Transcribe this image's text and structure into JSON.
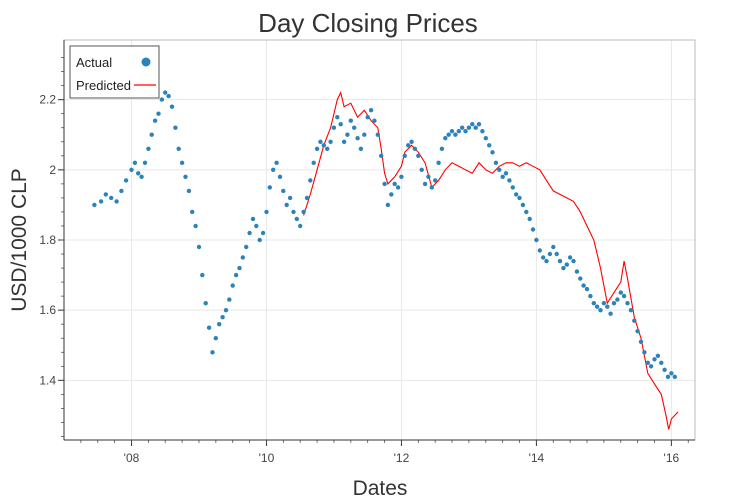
{
  "chart_data": {
    "type": "scatter",
    "title": "Day Closing Prices",
    "xlabel": "Dates",
    "ylabel": "USD/1000 CLP",
    "xlim": [
      2007.0,
      2016.35
    ],
    "ylim": [
      1.23,
      2.37
    ],
    "x_ticks": [
      {
        "value": 2008,
        "label": "'08"
      },
      {
        "value": 2010,
        "label": "'10"
      },
      {
        "value": 2012,
        "label": "'12"
      },
      {
        "value": 2014,
        "label": "'14"
      },
      {
        "value": 2016,
        "label": "'16"
      }
    ],
    "y_ticks": [
      {
        "value": 1.4,
        "label": "1.4"
      },
      {
        "value": 1.6,
        "label": "1.6"
      },
      {
        "value": 1.8,
        "label": "1.8"
      },
      {
        "value": 2.0,
        "label": "2"
      },
      {
        "value": 2.2,
        "label": "2.2"
      }
    ],
    "grid": true,
    "legend_position": "top-left",
    "series": [
      {
        "name": "Actual",
        "style": "points",
        "color": "#2b83ba",
        "points": [
          [
            2007.45,
            1.9
          ],
          [
            2007.55,
            1.91
          ],
          [
            2007.62,
            1.93
          ],
          [
            2007.7,
            1.92
          ],
          [
            2007.78,
            1.91
          ],
          [
            2007.85,
            1.94
          ],
          [
            2007.92,
            1.97
          ],
          [
            2008.0,
            2.0
          ],
          [
            2008.05,
            2.02
          ],
          [
            2008.1,
            1.99
          ],
          [
            2008.15,
            1.98
          ],
          [
            2008.2,
            2.02
          ],
          [
            2008.25,
            2.06
          ],
          [
            2008.3,
            2.1
          ],
          [
            2008.35,
            2.14
          ],
          [
            2008.4,
            2.16
          ],
          [
            2008.45,
            2.2
          ],
          [
            2008.5,
            2.22
          ],
          [
            2008.55,
            2.21
          ],
          [
            2008.6,
            2.18
          ],
          [
            2008.65,
            2.12
          ],
          [
            2008.7,
            2.06
          ],
          [
            2008.75,
            2.02
          ],
          [
            2008.8,
            1.98
          ],
          [
            2008.85,
            1.94
          ],
          [
            2008.9,
            1.88
          ],
          [
            2008.95,
            1.84
          ],
          [
            2009.0,
            1.78
          ],
          [
            2009.05,
            1.7
          ],
          [
            2009.1,
            1.62
          ],
          [
            2009.15,
            1.55
          ],
          [
            2009.2,
            1.48
          ],
          [
            2009.25,
            1.52
          ],
          [
            2009.3,
            1.56
          ],
          [
            2009.35,
            1.58
          ],
          [
            2009.4,
            1.6
          ],
          [
            2009.45,
            1.63
          ],
          [
            2009.5,
            1.67
          ],
          [
            2009.55,
            1.7
          ],
          [
            2009.6,
            1.72
          ],
          [
            2009.65,
            1.75
          ],
          [
            2009.7,
            1.78
          ],
          [
            2009.75,
            1.82
          ],
          [
            2009.8,
            1.86
          ],
          [
            2009.85,
            1.84
          ],
          [
            2009.9,
            1.8
          ],
          [
            2009.95,
            1.82
          ],
          [
            2010.0,
            1.88
          ],
          [
            2010.05,
            1.95
          ],
          [
            2010.1,
            2.0
          ],
          [
            2010.15,
            2.02
          ],
          [
            2010.2,
            1.98
          ],
          [
            2010.25,
            1.94
          ],
          [
            2010.3,
            1.9
          ],
          [
            2010.35,
            1.92
          ],
          [
            2010.4,
            1.88
          ],
          [
            2010.45,
            1.86
          ],
          [
            2010.5,
            1.84
          ],
          [
            2010.55,
            1.88
          ],
          [
            2010.6,
            1.92
          ],
          [
            2010.65,
            1.97
          ],
          [
            2010.7,
            2.02
          ],
          [
            2010.75,
            2.06
          ],
          [
            2010.8,
            2.08
          ],
          [
            2010.85,
            2.07
          ],
          [
            2010.9,
            2.06
          ],
          [
            2010.95,
            2.08
          ],
          [
            2011.0,
            2.12
          ],
          [
            2011.05,
            2.15
          ],
          [
            2011.1,
            2.13
          ],
          [
            2011.15,
            2.08
          ],
          [
            2011.2,
            2.1
          ],
          [
            2011.25,
            2.14
          ],
          [
            2011.3,
            2.12
          ],
          [
            2011.35,
            2.09
          ],
          [
            2011.4,
            2.06
          ],
          [
            2011.45,
            2.1
          ],
          [
            2011.5,
            2.15
          ],
          [
            2011.55,
            2.17
          ],
          [
            2011.6,
            2.14
          ],
          [
            2011.65,
            2.1
          ],
          [
            2011.7,
            2.04
          ],
          [
            2011.75,
            1.96
          ],
          [
            2011.8,
            1.9
          ],
          [
            2011.85,
            1.93
          ],
          [
            2011.9,
            1.96
          ],
          [
            2011.95,
            1.95
          ],
          [
            2012.0,
            1.98
          ],
          [
            2012.05,
            2.04
          ],
          [
            2012.1,
            2.07
          ],
          [
            2012.15,
            2.08
          ],
          [
            2012.2,
            2.06
          ],
          [
            2012.25,
            2.04
          ],
          [
            2012.3,
            2.0
          ],
          [
            2012.35,
            1.96
          ],
          [
            2012.4,
            1.98
          ],
          [
            2012.45,
            1.95
          ],
          [
            2012.5,
            1.97
          ],
          [
            2012.55,
            2.02
          ],
          [
            2012.6,
            2.06
          ],
          [
            2012.65,
            2.09
          ],
          [
            2012.7,
            2.1
          ],
          [
            2012.75,
            2.11
          ],
          [
            2012.8,
            2.1
          ],
          [
            2012.85,
            2.11
          ],
          [
            2012.9,
            2.12
          ],
          [
            2012.95,
            2.11
          ],
          [
            2013.0,
            2.12
          ],
          [
            2013.05,
            2.13
          ],
          [
            2013.1,
            2.12
          ],
          [
            2013.15,
            2.13
          ],
          [
            2013.2,
            2.11
          ],
          [
            2013.25,
            2.09
          ],
          [
            2013.3,
            2.07
          ],
          [
            2013.35,
            2.05
          ],
          [
            2013.4,
            2.02
          ],
          [
            2013.45,
            2.0
          ],
          [
            2013.5,
            1.98
          ],
          [
            2013.55,
            1.99
          ],
          [
            2013.6,
            1.97
          ],
          [
            2013.65,
            1.95
          ],
          [
            2013.7,
            1.93
          ],
          [
            2013.75,
            1.92
          ],
          [
            2013.8,
            1.9
          ],
          [
            2013.85,
            1.88
          ],
          [
            2013.9,
            1.86
          ],
          [
            2013.95,
            1.83
          ],
          [
            2014.0,
            1.8
          ],
          [
            2014.05,
            1.77
          ],
          [
            2014.1,
            1.75
          ],
          [
            2014.15,
            1.74
          ],
          [
            2014.2,
            1.76
          ],
          [
            2014.25,
            1.78
          ],
          [
            2014.3,
            1.76
          ],
          [
            2014.35,
            1.74
          ],
          [
            2014.4,
            1.72
          ],
          [
            2014.45,
            1.73
          ],
          [
            2014.5,
            1.75
          ],
          [
            2014.55,
            1.74
          ],
          [
            2014.6,
            1.71
          ],
          [
            2014.65,
            1.69
          ],
          [
            2014.7,
            1.67
          ],
          [
            2014.75,
            1.66
          ],
          [
            2014.8,
            1.64
          ],
          [
            2014.85,
            1.62
          ],
          [
            2014.9,
            1.61
          ],
          [
            2014.95,
            1.6
          ],
          [
            2015.0,
            1.62
          ],
          [
            2015.05,
            1.61
          ],
          [
            2015.1,
            1.59
          ],
          [
            2015.15,
            1.62
          ],
          [
            2015.2,
            1.63
          ],
          [
            2015.25,
            1.65
          ],
          [
            2015.3,
            1.64
          ],
          [
            2015.35,
            1.62
          ],
          [
            2015.4,
            1.6
          ],
          [
            2015.45,
            1.57
          ],
          [
            2015.5,
            1.54
          ],
          [
            2015.55,
            1.51
          ],
          [
            2015.6,
            1.48
          ],
          [
            2015.65,
            1.45
          ],
          [
            2015.7,
            1.44
          ],
          [
            2015.75,
            1.46
          ],
          [
            2015.8,
            1.47
          ],
          [
            2015.85,
            1.45
          ],
          [
            2015.9,
            1.43
          ],
          [
            2015.95,
            1.41
          ],
          [
            2016.0,
            1.42
          ],
          [
            2016.05,
            1.41
          ]
        ]
      },
      {
        "name": "Predicted",
        "style": "line",
        "color": "#ff0000",
        "points": [
          [
            2010.55,
            1.87
          ],
          [
            2010.65,
            1.93
          ],
          [
            2010.75,
            2.0
          ],
          [
            2010.85,
            2.07
          ],
          [
            2010.95,
            2.12
          ],
          [
            2011.05,
            2.2
          ],
          [
            2011.1,
            2.22
          ],
          [
            2011.15,
            2.18
          ],
          [
            2011.25,
            2.19
          ],
          [
            2011.35,
            2.15
          ],
          [
            2011.45,
            2.17
          ],
          [
            2011.55,
            2.14
          ],
          [
            2011.65,
            2.12
          ],
          [
            2011.7,
            2.06
          ],
          [
            2011.75,
            1.99
          ],
          [
            2011.8,
            1.96
          ],
          [
            2011.9,
            1.98
          ],
          [
            2012.0,
            2.01
          ],
          [
            2012.05,
            2.05
          ],
          [
            2012.15,
            2.07
          ],
          [
            2012.25,
            2.05
          ],
          [
            2012.35,
            2.02
          ],
          [
            2012.45,
            1.95
          ],
          [
            2012.55,
            1.97
          ],
          [
            2012.65,
            2.0
          ],
          [
            2012.75,
            2.02
          ],
          [
            2012.85,
            2.01
          ],
          [
            2012.95,
            2.0
          ],
          [
            2013.05,
            1.99
          ],
          [
            2013.15,
            2.02
          ],
          [
            2013.25,
            2.0
          ],
          [
            2013.35,
            1.99
          ],
          [
            2013.45,
            2.01
          ],
          [
            2013.55,
            2.02
          ],
          [
            2013.65,
            2.02
          ],
          [
            2013.75,
            2.01
          ],
          [
            2013.85,
            2.02
          ],
          [
            2013.95,
            2.01
          ],
          [
            2014.05,
            2.0
          ],
          [
            2014.15,
            1.97
          ],
          [
            2014.25,
            1.94
          ],
          [
            2014.35,
            1.93
          ],
          [
            2014.45,
            1.92
          ],
          [
            2014.55,
            1.91
          ],
          [
            2014.65,
            1.88
          ],
          [
            2014.75,
            1.84
          ],
          [
            2014.85,
            1.8
          ],
          [
            2014.95,
            1.72
          ],
          [
            2015.05,
            1.62
          ],
          [
            2015.15,
            1.65
          ],
          [
            2015.25,
            1.68
          ],
          [
            2015.3,
            1.74
          ],
          [
            2015.35,
            1.69
          ],
          [
            2015.45,
            1.58
          ],
          [
            2015.55,
            1.52
          ],
          [
            2015.65,
            1.42
          ],
          [
            2015.75,
            1.39
          ],
          [
            2015.85,
            1.36
          ],
          [
            2015.92,
            1.3
          ],
          [
            2015.96,
            1.26
          ],
          [
            2016.0,
            1.29
          ],
          [
            2016.05,
            1.3
          ],
          [
            2016.1,
            1.31
          ]
        ]
      }
    ]
  }
}
